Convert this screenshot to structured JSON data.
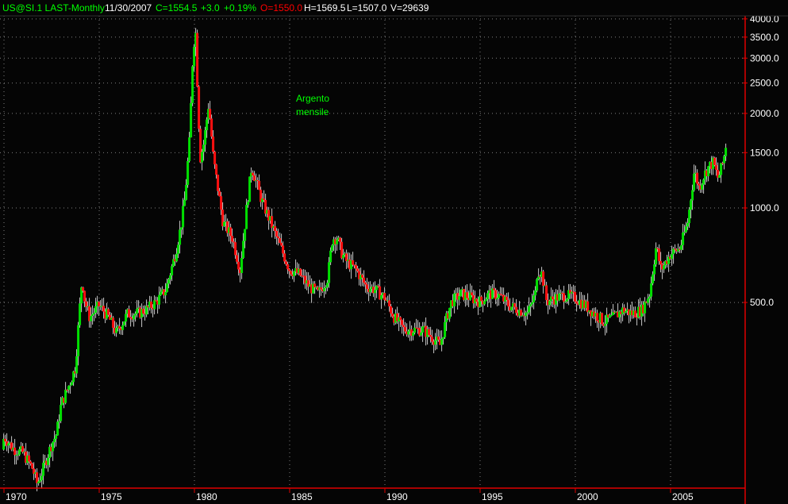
{
  "header": {
    "symbol": "US@SI.1 LAST-Monthly",
    "date": "11/30/2007",
    "close": "C=1554.5",
    "change": "+3.0",
    "change_pct": "+0.19%",
    "open": "O=1550.0",
    "high": "H=1569.5",
    "low": "L=1507.0",
    "volume": "V=29639"
  },
  "annotation": {
    "line1": "Argento",
    "line2": "mensile"
  },
  "colors": {
    "up": "#00e000",
    "down": "#ff1010",
    "axis": "#e00000",
    "text_green": "#00ff00",
    "text_red": "#ff0000",
    "wick": "#c8c8c8",
    "background": "#050505"
  },
  "chart_data": {
    "type": "candlestick",
    "interval": "monthly",
    "y_scale": "log",
    "ylim": [
      128,
      4600
    ],
    "xlim": [
      1969.8,
      2008.7
    ],
    "grid": true,
    "y_ticks": [
      "4000.0",
      "3500.0",
      "3000.0",
      "2500.0",
      "2000.0",
      "1500.0",
      "1000.0",
      "500.0"
    ],
    "x_ticks": [
      "1970",
      "1975",
      "1980",
      "1985",
      "1990",
      "1995",
      "2000",
      "2005"
    ],
    "approx_closes": [
      [
        1969.9,
        170
      ],
      [
        1970.0,
        187
      ],
      [
        1970.5,
        171
      ],
      [
        1971.0,
        166
      ],
      [
        1971.5,
        148
      ],
      [
        1971.75,
        132
      ],
      [
        1972.0,
        144
      ],
      [
        1972.5,
        177
      ],
      [
        1972.75,
        190
      ],
      [
        1973.0,
        236
      ],
      [
        1973.5,
        281
      ],
      [
        1973.75,
        310
      ],
      [
        1974.0,
        503
      ],
      [
        1974.1,
        600
      ],
      [
        1974.25,
        503
      ],
      [
        1974.5,
        448
      ],
      [
        1975.0,
        490
      ],
      [
        1975.5,
        448
      ],
      [
        1975.9,
        400
      ],
      [
        1976.5,
        461
      ],
      [
        1977.0,
        461
      ],
      [
        1977.5,
        475
      ],
      [
        1978.0,
        503
      ],
      [
        1978.5,
        549
      ],
      [
        1979.0,
        714
      ],
      [
        1979.3,
        880
      ],
      [
        1979.5,
        1072
      ],
      [
        1979.75,
        1660
      ],
      [
        1979.9,
        2890
      ],
      [
        1980.05,
        3860
      ],
      [
        1980.15,
        2530
      ],
      [
        1980.3,
        1434
      ],
      [
        1980.5,
        1612
      ],
      [
        1980.75,
        2155
      ],
      [
        1981.0,
        1434
      ],
      [
        1981.25,
        1137
      ],
      [
        1981.5,
        900
      ],
      [
        1981.75,
        850
      ],
      [
        1982.0,
        802
      ],
      [
        1982.4,
        635
      ],
      [
        1982.75,
        1012
      ],
      [
        1983.0,
        1353
      ],
      [
        1983.25,
        1210
      ],
      [
        1983.5,
        1072
      ],
      [
        1984.0,
        900
      ],
      [
        1984.5,
        757
      ],
      [
        1985.0,
        635
      ],
      [
        1985.5,
        617
      ],
      [
        1986.0,
        565
      ],
      [
        1986.5,
        533
      ],
      [
        1987.0,
        600
      ],
      [
        1987.25,
        802
      ],
      [
        1987.5,
        802
      ],
      [
        1987.75,
        714
      ],
      [
        1988.0,
        674
      ],
      [
        1988.5,
        635
      ],
      [
        1989.0,
        565
      ],
      [
        1989.5,
        549
      ],
      [
        1990.0,
        518
      ],
      [
        1990.5,
        448
      ],
      [
        1991.0,
        410
      ],
      [
        1991.5,
        410
      ],
      [
        1992.0,
        410
      ],
      [
        1992.5,
        387
      ],
      [
        1992.9,
        366
      ],
      [
        1993.25,
        448
      ],
      [
        1993.5,
        503
      ],
      [
        1994.0,
        533
      ],
      [
        1994.5,
        518
      ],
      [
        1995.0,
        503
      ],
      [
        1995.5,
        533
      ],
      [
        1996.0,
        527
      ],
      [
        1996.5,
        490
      ],
      [
        1997.0,
        474
      ],
      [
        1997.5,
        461
      ],
      [
        1997.9,
        533
      ],
      [
        1998.0,
        635
      ],
      [
        1998.25,
        617
      ],
      [
        1998.5,
        503
      ],
      [
        1999.0,
        518
      ],
      [
        1999.5,
        527
      ],
      [
        2000.0,
        518
      ],
      [
        2000.5,
        490
      ],
      [
        2001.0,
        461
      ],
      [
        2001.5,
        434
      ],
      [
        2002.0,
        448
      ],
      [
        2002.5,
        474
      ],
      [
        2003.0,
        461
      ],
      [
        2003.5,
        474
      ],
      [
        2003.9,
        533
      ],
      [
        2004.25,
        757
      ],
      [
        2004.5,
        635
      ],
      [
        2005.0,
        714
      ],
      [
        2005.5,
        745
      ],
      [
        2005.9,
        900
      ],
      [
        2006.25,
        1315
      ],
      [
        2006.5,
        1160
      ],
      [
        2006.75,
        1270
      ],
      [
        2007.0,
        1353
      ],
      [
        2007.25,
        1395
      ],
      [
        2007.5,
        1240
      ],
      [
        2007.75,
        1395
      ],
      [
        2007.9,
        1554.5
      ]
    ]
  }
}
